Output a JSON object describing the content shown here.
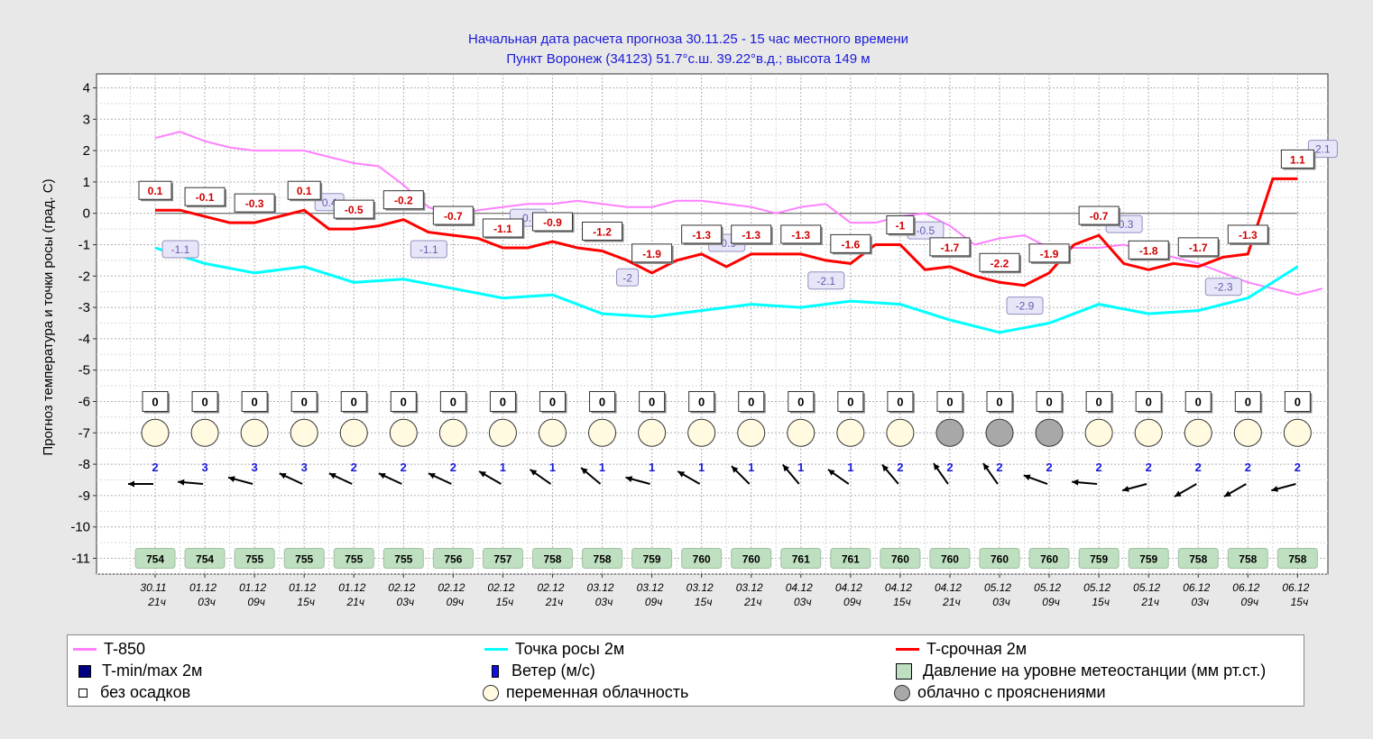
{
  "title": {
    "line1": "Начальная дата расчета прогноза 30.11.25  -  15 час  местного времени",
    "line2": "Пункт  Воронеж (34123)    51.7°с.ш.   39.22°в.д.; высота 149 м"
  },
  "colors": {
    "t850": "#ff80ff",
    "dew": "#00ffff",
    "temp": "#ff0000",
    "title": "#1a1adb",
    "pressure_fill": "#bfe0c0",
    "cloud_partly": "#fffae0",
    "cloud_mostly": "#a8a8a8",
    "wind_num": "#1a1adb",
    "label_temp": "#d00000",
    "label_t850": "#6060b0"
  },
  "chart_data": {
    "type": "line",
    "ylabel": "Прогноз температура и точки росы (град. С)",
    "ylim": [
      -11,
      4
    ],
    "yticks": [
      "4",
      "3",
      "2",
      "1",
      "0",
      "-1",
      "-2",
      "-3",
      "-4",
      "-5",
      "-6",
      "-7",
      "-8",
      "-9",
      "-10",
      "-11"
    ],
    "categories": [
      {
        "date": "30.11",
        "hour": "21ч"
      },
      {
        "date": "01.12",
        "hour": "03ч"
      },
      {
        "date": "01.12",
        "hour": "09ч"
      },
      {
        "date": "01.12",
        "hour": "15ч"
      },
      {
        "date": "01.12",
        "hour": "21ч"
      },
      {
        "date": "02.12",
        "hour": "03ч"
      },
      {
        "date": "02.12",
        "hour": "09ч"
      },
      {
        "date": "02.12",
        "hour": "15ч"
      },
      {
        "date": "02.12",
        "hour": "21ч"
      },
      {
        "date": "03.12",
        "hour": "03ч"
      },
      {
        "date": "03.12",
        "hour": "09ч"
      },
      {
        "date": "03.12",
        "hour": "15ч"
      },
      {
        "date": "03.12",
        "hour": "21ч"
      },
      {
        "date": "04.12",
        "hour": "03ч"
      },
      {
        "date": "04.12",
        "hour": "09ч"
      },
      {
        "date": "04.12",
        "hour": "15ч"
      },
      {
        "date": "04.12",
        "hour": "21ч"
      },
      {
        "date": "05.12",
        "hour": "03ч"
      },
      {
        "date": "05.12",
        "hour": "09ч"
      },
      {
        "date": "05.12",
        "hour": "15ч"
      },
      {
        "date": "05.12",
        "hour": "21ч"
      },
      {
        "date": "06.12",
        "hour": "03ч"
      },
      {
        "date": "06.12",
        "hour": "09ч"
      },
      {
        "date": "06.12",
        "hour": "15ч"
      }
    ],
    "series": [
      {
        "name": "T-850",
        "labels": [
          "-1.1",
          "0.4",
          "-1.1",
          "-0.1",
          "-2",
          "-0.9",
          "-2.1",
          "-0.5",
          "-2.9",
          "-0.3",
          "-2.3",
          "2.1"
        ],
        "label_values": [
          -1.1,
          0.4,
          -1.1,
          -0.1,
          -2,
          -0.9,
          -2.1,
          -0.5,
          -2.9,
          -0.3,
          -2.3,
          2.1
        ],
        "label_times": [
          0,
          3,
          5,
          7,
          9,
          11,
          13,
          15,
          17,
          19,
          21,
          23
        ]
      },
      {
        "name": "Точка росы 2м",
        "values": [
          -1.1,
          -1.6,
          -1.9,
          -1.7,
          -2.2,
          -2.1,
          -2.4,
          -2.7,
          -2.6,
          -3.2,
          -3.3,
          -3.1,
          -2.9,
          -3.0,
          -2.8,
          -2.9,
          -3.4,
          -3.8,
          -3.5,
          -2.9,
          -3.2,
          -3.1,
          -2.7,
          -1.7
        ]
      },
      {
        "name": "T-срочная 2м",
        "values": [
          0.1,
          -0.1,
          -0.3,
          0.1,
          -0.5,
          -0.2,
          -0.7,
          -1.1,
          -0.9,
          -1.2,
          -1.9,
          -1.3,
          -1.3,
          -1.3,
          -1.6,
          -1.0,
          -1.7,
          -2.2,
          -1.9,
          -0.7,
          -1.8,
          -1.7,
          -1.3,
          1.1
        ],
        "labels": [
          "0.1",
          "-0.1",
          "-0.3",
          "0.1",
          "-0.5",
          "-0.2",
          "-0.7",
          "-1.1",
          "-0.9",
          "-1.2",
          "-1.9",
          "-1.3",
          "-1.3",
          "-1.3",
          "-1.6",
          "-1",
          "-1.7",
          "-2.2",
          "-1.9",
          "-0.7",
          "-1.8",
          "-1.7",
          "-1.3",
          "1.1"
        ]
      }
    ],
    "precipitation": [
      "0",
      "0",
      "0",
      "0",
      "0",
      "0",
      "0",
      "0",
      "0",
      "0",
      "0",
      "0",
      "0",
      "0",
      "0",
      "0",
      "0",
      "0",
      "0",
      "0",
      "0",
      "0",
      "0",
      "0"
    ],
    "cloud": [
      "partly",
      "partly",
      "partly",
      "partly",
      "partly",
      "partly",
      "partly",
      "partly",
      "partly",
      "partly",
      "partly",
      "partly",
      "partly",
      "partly",
      "partly",
      "partly",
      "mostly",
      "mostly",
      "mostly",
      "partly",
      "partly",
      "partly",
      "partly",
      "partly"
    ],
    "wind_speed": [
      "2",
      "3",
      "3",
      "3",
      "2",
      "2",
      "2",
      "1",
      "1",
      "1",
      "1",
      "1",
      "1",
      "1",
      "1",
      "2",
      "2",
      "2",
      "2",
      "2",
      "2",
      "2",
      "2",
      "2"
    ],
    "wind_dir_deg": [
      90,
      95,
      105,
      115,
      115,
      115,
      115,
      120,
      125,
      130,
      105,
      120,
      135,
      140,
      125,
      140,
      145,
      145,
      110,
      95,
      75,
      60,
      60,
      75
    ],
    "pressure": [
      "754",
      "754",
      "755",
      "755",
      "755",
      "755",
      "756",
      "757",
      "758",
      "758",
      "759",
      "760",
      "760",
      "761",
      "761",
      "760",
      "760",
      "760",
      "760",
      "759",
      "759",
      "758",
      "758",
      "758"
    ]
  },
  "legend": {
    "t850": "T-850",
    "dew": "Точка росы 2м",
    "temp": "T-срочная 2м",
    "tminmax": "T-min/max 2м",
    "wind": "Ветер (м/с)",
    "pressure": "Давление на уровне метеостанции (мм рт.ст.)",
    "no_precip": "без осадков",
    "partly": "переменная облачность",
    "mostly": "облачно с прояснениями"
  }
}
